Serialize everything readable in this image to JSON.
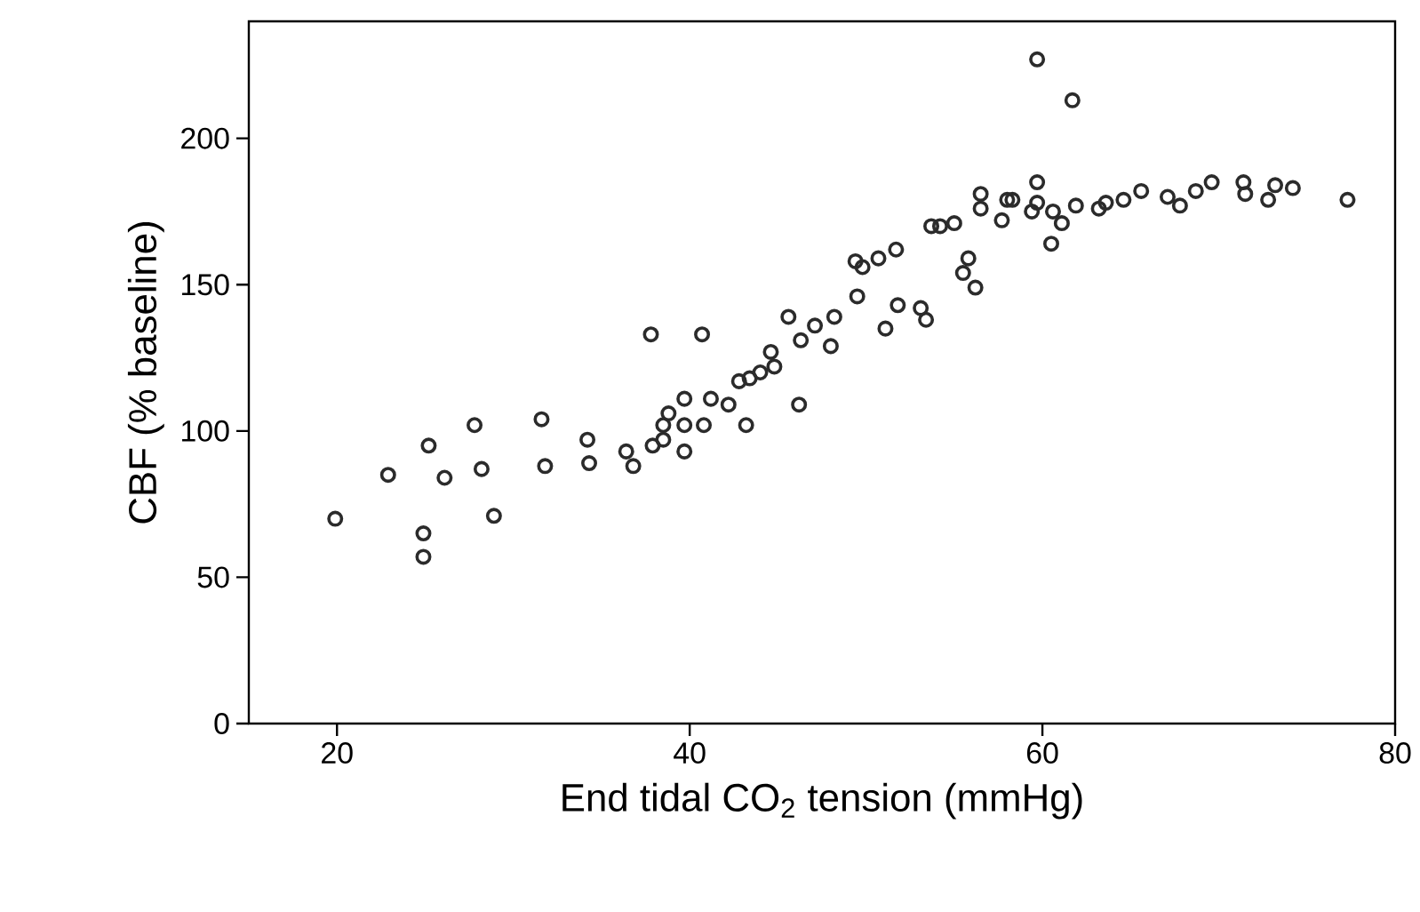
{
  "chart_data": {
    "type": "scatter",
    "xlabel": "End tidal CO$_{2}$ tension (mmHg)",
    "ylabel": "CBF (% baseline)",
    "color": "#2b2b2b",
    "marker": "circle",
    "xlim": [
      15,
      80
    ],
    "ylim": [
      0,
      240
    ],
    "xticks": [
      20,
      40,
      60,
      80
    ],
    "yticks": [
      0,
      50,
      100,
      150,
      200
    ],
    "x": [
      19.9,
      22.9,
      25.2,
      24.9,
      24.9,
      26.1,
      27.8,
      28.2,
      28.9,
      31.6,
      31.8,
      34.2,
      34.3,
      36.4,
      36.8,
      37.8,
      40.7,
      37.9,
      38.5,
      38.8,
      38.5,
      39.7,
      39.7,
      39.7,
      40.8,
      41.2,
      42.2,
      43.2,
      42.8,
      43.4,
      44.0,
      44.6,
      44.8,
      45.6,
      46.2,
      46.3,
      47.1,
      48.0,
      48.2,
      49.5,
      49.4,
      49.8,
      50.7,
      51.7,
      51.1,
      51.8,
      53.1,
      53.4,
      53.7,
      54.2,
      55.0,
      55.8,
      55.5,
      56.2,
      56.5,
      56.5,
      57.7,
      58.0,
      58.3,
      59.7,
      59.7,
      59.4,
      60.5,
      60.6,
      61.1,
      61.9,
      63.2,
      59.7,
      61.7,
      63.6,
      64.6,
      65.6,
      67.1,
      67.8,
      68.7,
      69.6,
      71.4,
      71.5,
      72.8,
      73.2,
      74.2,
      77.3
    ],
    "values": [
      70,
      85,
      95,
      65,
      57,
      84,
      102,
      87,
      71,
      104,
      88,
      97,
      89,
      93,
      88,
      133,
      133,
      95,
      97,
      106,
      102,
      111,
      102,
      93,
      102,
      111,
      109,
      102,
      117,
      118,
      120,
      127,
      122,
      139,
      109,
      131,
      136,
      129,
      139,
      146,
      158,
      156,
      159,
      162,
      135,
      143,
      142,
      138,
      170,
      170,
      171,
      159,
      154,
      149,
      181,
      176,
      172,
      179,
      179,
      185,
      178,
      175,
      164,
      175,
      171,
      177,
      176,
      227,
      213,
      178,
      179,
      182,
      180,
      177,
      182,
      185,
      185,
      181,
      179,
      184,
      183,
      179
    ]
  }
}
